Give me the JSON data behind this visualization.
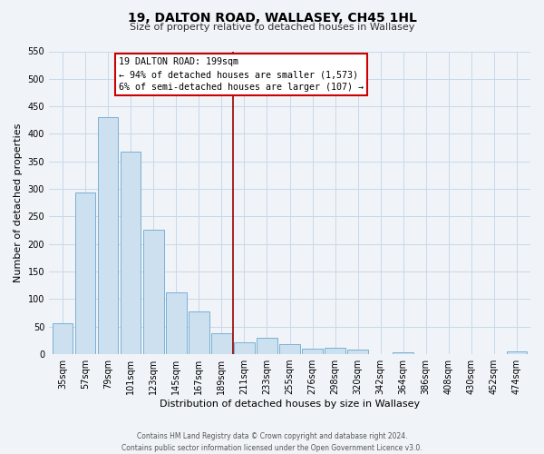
{
  "title": "19, DALTON ROAD, WALLASEY, CH45 1HL",
  "subtitle": "Size of property relative to detached houses in Wallasey",
  "xlabel": "Distribution of detached houses by size in Wallasey",
  "ylabel": "Number of detached properties",
  "bar_labels": [
    "35sqm",
    "57sqm",
    "79sqm",
    "101sqm",
    "123sqm",
    "145sqm",
    "167sqm",
    "189sqm",
    "211sqm",
    "233sqm",
    "255sqm",
    "276sqm",
    "298sqm",
    "320sqm",
    "342sqm",
    "364sqm",
    "386sqm",
    "408sqm",
    "430sqm",
    "452sqm",
    "474sqm"
  ],
  "bar_heights": [
    57,
    293,
    430,
    368,
    226,
    113,
    77,
    38,
    22,
    30,
    18,
    10,
    11,
    9,
    0,
    3,
    0,
    0,
    0,
    0,
    5
  ],
  "bar_color": "#cce0f0",
  "bar_edge_color": "#7ab0d4",
  "vline_color": "#990000",
  "annotation_title": "19 DALTON ROAD: 199sqm",
  "annotation_line1": "← 94% of detached houses are smaller (1,573)",
  "annotation_line2": "6% of semi-detached houses are larger (107) →",
  "annotation_box_color": "#ffffff",
  "annotation_box_edge": "#cc0000",
  "ylim_max": 550,
  "ytick_step": 50,
  "grid_color": "#c8d8e8",
  "footer_line1": "Contains HM Land Registry data © Crown copyright and database right 2024.",
  "footer_line2": "Contains public sector information licensed under the Open Government Licence v3.0.",
  "background_color": "#f0f4f8",
  "title_fontsize": 10,
  "subtitle_fontsize": 8,
  "axis_label_fontsize": 8,
  "tick_fontsize": 7,
  "footer_fontsize": 5.5
}
